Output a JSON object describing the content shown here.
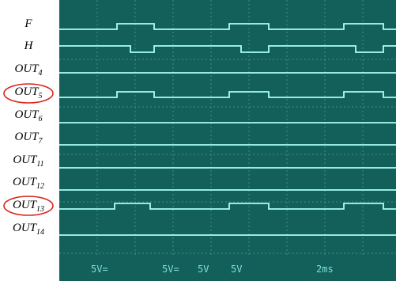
{
  "labels": [
    {
      "base": "F"
    },
    {
      "base": "H"
    },
    {
      "base": "OUT",
      "sub": "4"
    },
    {
      "base": "OUT",
      "sub": "5"
    },
    {
      "base": "OUT",
      "sub": "6"
    },
    {
      "base": "OUT",
      "sub": "7"
    },
    {
      "base": "OUT",
      "sub": "11"
    },
    {
      "base": "OUT",
      "sub": "12"
    },
    {
      "base": "OUT",
      "sub": "13"
    },
    {
      "base": "OUT",
      "sub": "14"
    }
  ],
  "readouts": [
    "5V=",
    "5V=",
    "5V",
    "5V",
    "2ms"
  ]
}
